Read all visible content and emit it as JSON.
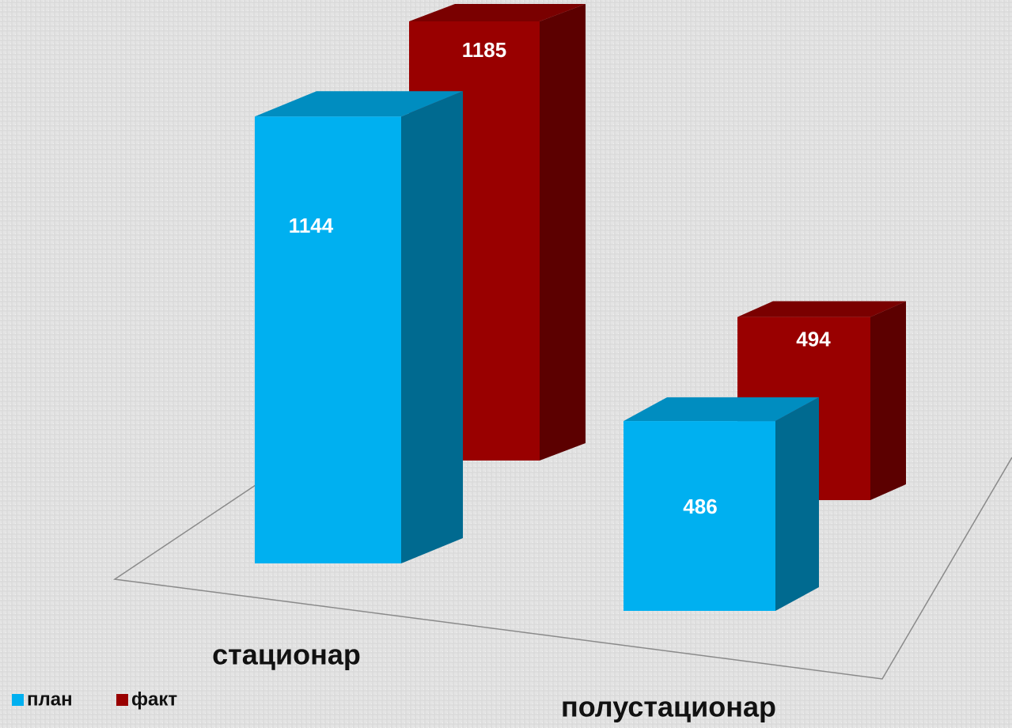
{
  "chart_data": {
    "type": "bar3d",
    "categories": [
      "стационар",
      "полустационар"
    ],
    "series": [
      {
        "name": "план",
        "color": "#00b0f0",
        "values": [
          1144,
          486
        ]
      },
      {
        "name": "факт",
        "color": "#990000",
        "values": [
          1185,
          494
        ]
      }
    ],
    "legend": "bottom-left"
  }
}
